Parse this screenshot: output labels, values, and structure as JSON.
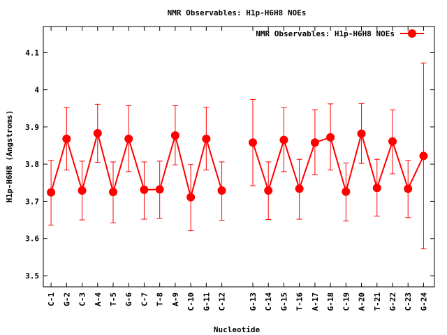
{
  "chart_data": {
    "type": "line",
    "title": "NMR Observables: H1p-H6H8 NOEs",
    "xlabel": "Nucleotide",
    "ylabel": "H1p-H6H8 (Angstroms)",
    "ylim": [
      3.47,
      4.17
    ],
    "yticks": [
      3.5,
      3.6,
      3.7,
      3.8,
      3.9,
      4,
      4.1
    ],
    "ytick_labels": [
      "3.5",
      "3.6",
      "3.7",
      "3.8",
      "3.9",
      "4",
      "4.1"
    ],
    "legend": {
      "label": "NMR Observables: H1p-H6H8 NOEs",
      "position": "top-right"
    },
    "grid": false,
    "series_color": "#ff0000",
    "categories": [
      "C-1",
      "G-2",
      "C-3",
      "A-4",
      "T-5",
      "G-6",
      "C-7",
      "T-8",
      "A-9",
      "C-10",
      "G-11",
      "C-12",
      "G-13",
      "C-14",
      "G-15",
      "T-16",
      "A-17",
      "G-18",
      "C-19",
      "A-20",
      "T-21",
      "G-22",
      "C-23",
      "G-24"
    ],
    "x": [
      1,
      2,
      3,
      4,
      5,
      6,
      7,
      8,
      9,
      10,
      11,
      12,
      14,
      15,
      16,
      17,
      18,
      19,
      20,
      21,
      22,
      23,
      24,
      25
    ],
    "segments": [
      [
        0,
        11
      ],
      [
        12,
        23
      ]
    ],
    "series": [
      {
        "values": [
          3.724,
          3.868,
          3.729,
          3.883,
          3.725,
          3.868,
          3.731,
          3.732,
          3.877,
          3.711,
          3.868,
          3.729,
          3.858,
          3.729,
          3.865,
          3.734,
          3.858,
          3.872,
          3.726,
          3.882,
          3.736,
          3.861,
          3.734,
          3.822
        ],
        "err_low": [
          3.636,
          3.784,
          3.65,
          3.805,
          3.642,
          3.78,
          3.652,
          3.654,
          3.798,
          3.621,
          3.784,
          3.649,
          3.742,
          3.651,
          3.78,
          3.652,
          3.771,
          3.784,
          3.647,
          3.802,
          3.66,
          3.774,
          3.656,
          3.572
        ],
        "err_high": [
          3.81,
          3.952,
          3.808,
          3.961,
          3.806,
          3.957,
          3.806,
          3.808,
          3.957,
          3.799,
          3.953,
          3.806,
          3.974,
          3.806,
          3.952,
          3.813,
          3.946,
          3.962,
          3.803,
          3.963,
          3.813,
          3.946,
          3.81,
          4.072
        ]
      }
    ]
  }
}
